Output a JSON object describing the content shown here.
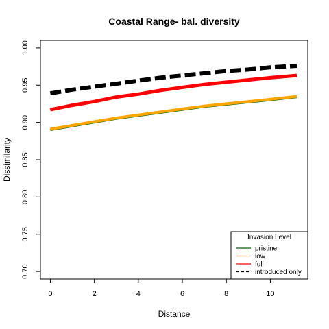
{
  "chart_data": {
    "type": "line",
    "title": "Coastal Range- bal. diversity",
    "xlabel": "Distance",
    "ylabel": "Dissimilarity",
    "xlim": [
      -0.45,
      11.7
    ],
    "ylim": [
      0.69,
      1.01
    ],
    "x_ticks": [
      0,
      2,
      4,
      6,
      8,
      10
    ],
    "y_ticks": [
      0.7,
      0.75,
      0.8,
      0.85,
      0.9,
      0.95,
      1.0
    ],
    "y_tick_labels": [
      "0.70",
      "0.75",
      "0.80",
      "0.85",
      "0.90",
      "0.95",
      "1.00"
    ],
    "grid": false,
    "legend": {
      "title": "Invasion Level",
      "position": "bottom-right",
      "entries": [
        "pristine",
        "low",
        "full",
        "introduced only"
      ]
    },
    "series": [
      {
        "name": "pristine",
        "color": "#006400",
        "dash": "solid",
        "x": [
          0,
          1,
          2,
          3,
          4,
          5,
          6,
          7,
          8,
          9,
          10,
          11.2
        ],
        "y": [
          0.89,
          0.895,
          0.9,
          0.905,
          0.909,
          0.913,
          0.917,
          0.921,
          0.924,
          0.927,
          0.93,
          0.934
        ]
      },
      {
        "name": "low",
        "color": "#FFA500",
        "dash": "solid",
        "x": [
          0,
          1,
          2,
          3,
          4,
          5,
          6,
          7,
          8,
          9,
          10,
          11.2
        ],
        "y": [
          0.891,
          0.896,
          0.901,
          0.906,
          0.91,
          0.914,
          0.918,
          0.922,
          0.925,
          0.928,
          0.931,
          0.935
        ]
      },
      {
        "name": "full",
        "color": "#FF0000",
        "dash": "solid",
        "x": [
          0,
          1,
          2,
          3,
          4,
          5,
          6,
          7,
          8,
          9,
          10,
          11.2
        ],
        "y": [
          0.917,
          0.923,
          0.928,
          0.934,
          0.938,
          0.943,
          0.947,
          0.951,
          0.954,
          0.957,
          0.96,
          0.963
        ]
      },
      {
        "name": "introduced only",
        "color": "#000000",
        "dash": "dashed",
        "x": [
          0,
          1,
          2,
          3,
          4,
          5,
          6,
          7,
          8,
          9,
          10,
          11.2
        ],
        "y": [
          0.939,
          0.944,
          0.948,
          0.952,
          0.956,
          0.96,
          0.963,
          0.966,
          0.969,
          0.971,
          0.974,
          0.976
        ]
      }
    ]
  }
}
